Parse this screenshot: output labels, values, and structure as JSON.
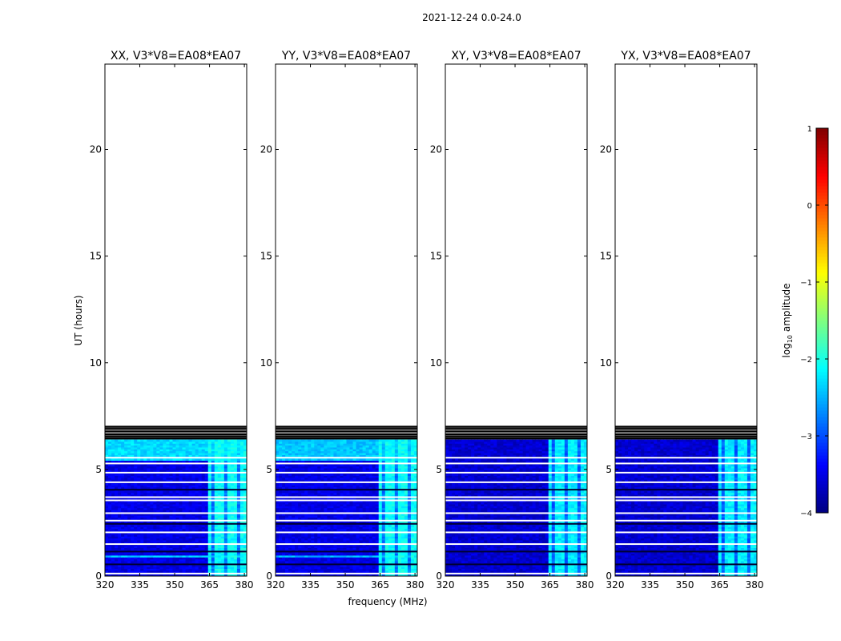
{
  "figure": {
    "suptitle": "2021-12-24 0.0-24.0",
    "ylabel": "UT (hours)",
    "xlabel": "frequency (MHz)"
  },
  "chart_data": {
    "type": "heatmap",
    "x_range_mhz": [
      320,
      381
    ],
    "xticks": [
      320,
      335,
      350,
      365,
      380
    ],
    "y_range_hours": [
      0,
      24
    ],
    "yticks": [
      0,
      5,
      10,
      15,
      20
    ],
    "data_extent_hours": [
      0,
      6.4
    ],
    "rfi_band_mhz": [
      364,
      381
    ],
    "panels": [
      {
        "title": "XX, V3*V8=EA08*EA07",
        "base_level": -3.5,
        "band_level": -2.1,
        "top_band": [
          5.4,
          6.4
        ],
        "top_band_level": -2.3,
        "extra_band": [
          0.85,
          1.0
        ],
        "extra_band_level": -2.4
      },
      {
        "title": "YY, V3*V8=EA08*EA07",
        "base_level": -3.5,
        "band_level": -2.1,
        "top_band": [
          5.4,
          6.4
        ],
        "top_band_level": -2.4,
        "extra_band": [
          0.85,
          1.0
        ],
        "extra_band_level": -2.5
      },
      {
        "title": "XY, V3*V8=EA08*EA07",
        "base_level": -3.6,
        "band_level": -2.2,
        "top_band": null,
        "top_band_level": null,
        "extra_band": null,
        "extra_band_level": null
      },
      {
        "title": "YX, V3*V8=EA08*EA07",
        "base_level": -3.6,
        "band_level": -2.2,
        "top_band": null,
        "top_band_level": null,
        "extra_band": null,
        "extra_band_level": null
      }
    ],
    "flagged_rows_hours": [
      0.12,
      1.5,
      2.05,
      2.6,
      2.95,
      3.55,
      3.7,
      4.4,
      4.85,
      5.28,
      5.55
    ],
    "gap_rows_hours": [
      0.55,
      1.15,
      2.45,
      4.05
    ],
    "black_lines_hours": [
      6.45,
      6.55,
      6.65,
      6.78,
      6.9,
      7.0
    ],
    "colorbar": {
      "label": "log10 amplitude",
      "label_main": "log",
      "label_sub": "10",
      "label_rest": " amplitude",
      "range": [
        -4,
        1
      ],
      "ticks": [
        1,
        0,
        -1,
        -2,
        -3,
        -4
      ],
      "colormap": "jet"
    }
  }
}
